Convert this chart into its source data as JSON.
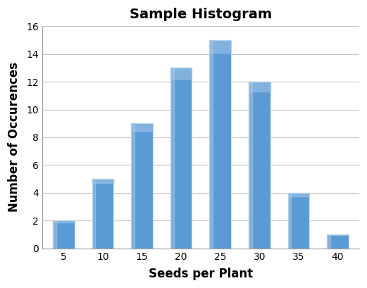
{
  "categories": [
    5,
    10,
    15,
    20,
    25,
    30,
    35,
    40
  ],
  "values": [
    2,
    5,
    9,
    13,
    15,
    12,
    4,
    1
  ],
  "bar_color": "#5b9bd5",
  "bar_color_light": "#a8c8e8",
  "bar_edge_color": "#d0e4f5",
  "title": "Sample Histogram",
  "xlabel": "Seeds per Plant",
  "ylabel": "Number of Occurences",
  "ylim": [
    0,
    16
  ],
  "yticks": [
    0,
    2,
    4,
    6,
    8,
    10,
    12,
    14,
    16
  ],
  "title_fontsize": 14,
  "axis_label_fontsize": 12,
  "tick_fontsize": 10,
  "bar_width": 0.55,
  "background_color": "#ffffff",
  "grid_color": "#c8c8c8",
  "font_family": "Arial"
}
